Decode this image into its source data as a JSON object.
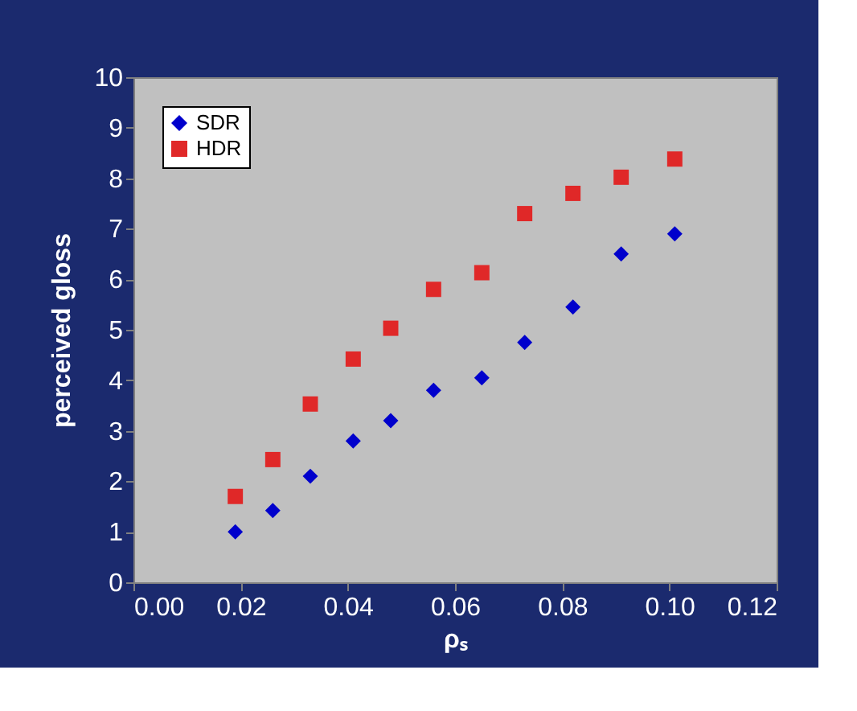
{
  "chart_data": {
    "type": "scatter",
    "xlabel": "ρₛ",
    "ylabel": "perceived gloss",
    "x": [
      0.019,
      0.026,
      0.033,
      0.041,
      0.048,
      0.056,
      0.065,
      0.073,
      0.082,
      0.091,
      0.101
    ],
    "series": [
      {
        "name": "SDR",
        "color": "#0000cc",
        "marker": "diamond",
        "values": [
          1.0,
          1.42,
          2.1,
          2.8,
          3.2,
          3.8,
          4.05,
          4.75,
          5.45,
          6.5,
          6.9
        ]
      },
      {
        "name": "HDR",
        "color": "#e02828",
        "marker": "square",
        "values": [
          1.7,
          2.43,
          3.53,
          4.42,
          5.03,
          5.8,
          6.13,
          7.3,
          7.7,
          8.02,
          8.38
        ]
      }
    ],
    "xlim": [
      0,
      0.12
    ],
    "xticks": [
      {
        "value": 0,
        "label": "0.00"
      },
      {
        "value": 0.02,
        "label": "0.02"
      },
      {
        "value": 0.04,
        "label": "0.04"
      },
      {
        "value": 0.06,
        "label": "0.06"
      },
      {
        "value": 0.08,
        "label": "0.08"
      },
      {
        "value": 0.1,
        "label": "0.10"
      },
      {
        "value": 0.12,
        "label": "0.12"
      }
    ],
    "ylim": [
      0,
      10
    ],
    "yticks": [
      0,
      1,
      2,
      3,
      4,
      5,
      6,
      7,
      8,
      9,
      10
    ],
    "grid": false,
    "legend": "top left"
  }
}
